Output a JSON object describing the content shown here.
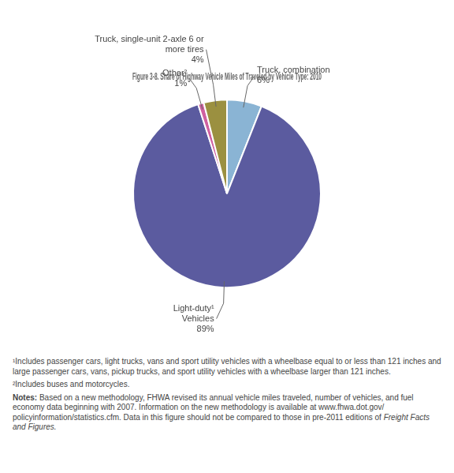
{
  "chart_data": {
    "type": "pie",
    "title": "Figure 3-8. Share of Highway Vehicle Miles of Traveled by Vehicle Type: 2010",
    "categories": [
      "Truck, combination",
      "Light-duty¹\nVehicles",
      "Other²",
      "Truck, single-unit 2-axle 6 or\nmore tires"
    ],
    "values": [
      6,
      89,
      1,
      4
    ],
    "value_labels": [
      "6%",
      "89%",
      "1%",
      "4%"
    ],
    "data_labels": true,
    "colors": [
      "#8ab4d4",
      "#5b5b9f",
      "#d060a0",
      "#9b9040"
    ],
    "footnotes": [
      "¹Includes passenger cars, light trucks, vans and sport utility vehicles with a wheelbase equal to or less than 121 inches and large passenger cars, vans, pickup trucks, and sport utility vehicles with a wheelbase larger than 121 inches.",
      "²Includes buses and motorcycles."
    ],
    "notes": [
      "Notes:",
      " Based on a new methodology, FHWA revised its annual vehicle miles traveled, number of vehicles, and fuel economy data beginning with 2007. Information on the new methodology is available at www.fhwa.dot.gov/ policyinformation/statistics.cfm. Data in this figure should not be compared to those in pre-2011 editions of ",
      "Freight Facts and Figures."
    ]
  }
}
